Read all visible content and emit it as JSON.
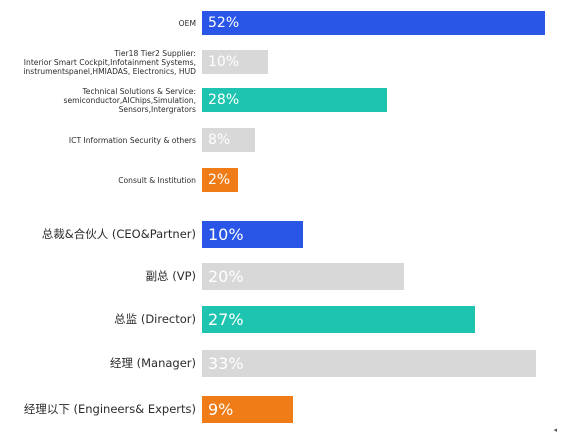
{
  "chart_data": [
    {
      "type": "bar",
      "orientation": "horizontal",
      "categories": [
        "OEM",
        "Tier18 Tier2 Supplier:\nInterior Smart Cockpit,Infotainment Systems,\ninstrumentspanel,HMIADAS, Electronics, HUD",
        "Technical Solutions & Service:\nsemiconductor,AIChips,Simulation,\nSensors,Intergrators",
        "ICT Information Security & others",
        "Consult & Institution"
      ],
      "values": [
        52,
        10,
        28,
        8,
        2
      ],
      "value_labels": [
        "52%",
        "10%",
        "28%",
        "8%",
        "2%"
      ],
      "colors": [
        "#2a56e8",
        "#d8d8d8",
        "#1ec4b0",
        "#d8d8d8",
        "#f07c18"
      ],
      "xlim": [
        0,
        52
      ],
      "grid": false,
      "legend": "none"
    },
    {
      "type": "bar",
      "orientation": "horizontal",
      "categories": [
        "总裁&合伙人 (CEO&Partner)",
        "副总 (VP)",
        "总监 (Director)",
        "经理 (Manager)",
        "经理以下 (Engineers& Experts)"
      ],
      "values": [
        10,
        20,
        27,
        33,
        9
      ],
      "value_labels": [
        "10%",
        "20%",
        "27%",
        "33%",
        "9%"
      ],
      "colors": [
        "#2a56e8",
        "#d8d8d8",
        "#1ec4b0",
        "#d8d8d8",
        "#f07c18"
      ],
      "xlim": [
        0,
        33
      ],
      "grid": false,
      "legend": "none"
    }
  ],
  "corner_glyph": "◂"
}
